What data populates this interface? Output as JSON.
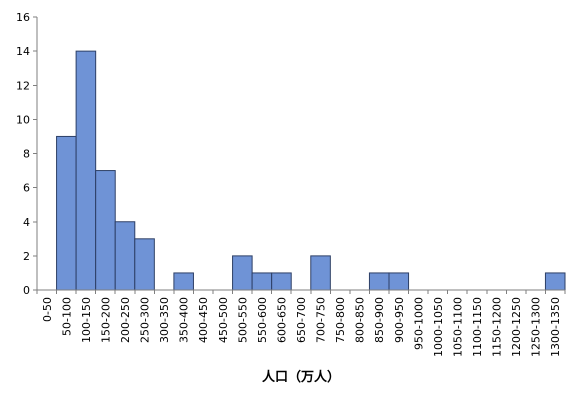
{
  "chart_data": {
    "type": "bar",
    "title": "",
    "xlabel": "人口（万人）",
    "ylabel": "",
    "ylim": [
      0,
      16
    ],
    "yticks": [
      0,
      2,
      4,
      6,
      8,
      10,
      12,
      14,
      16
    ],
    "grid": false,
    "legend": "none",
    "categories": [
      "0-50",
      "50-100",
      "100-150",
      "150-200",
      "200-250",
      "250-300",
      "300-350",
      "350-400",
      "400-450",
      "450-500",
      "500-550",
      "550-600",
      "600-650",
      "650-700",
      "700-750",
      "750-800",
      "800-850",
      "850-900",
      "900-950",
      "950-1000",
      "1000-1050",
      "1050-1100",
      "1100-1150",
      "1150-1200",
      "1200-1250",
      "1250-1300",
      "1300-1350"
    ],
    "values": [
      0,
      9,
      14,
      7,
      4,
      3,
      0,
      1,
      0,
      0,
      2,
      1,
      1,
      0,
      2,
      0,
      0,
      1,
      1,
      0,
      0,
      0,
      0,
      0,
      0,
      0,
      1
    ],
    "colors": {
      "bar_fill": "#6f93d6",
      "bar_stroke": "#2d3f66",
      "axis": "#7f7f7f"
    }
  }
}
